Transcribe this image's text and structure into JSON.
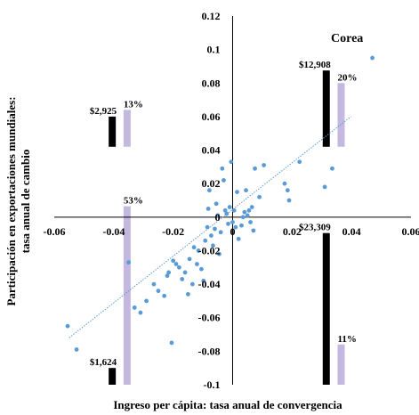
{
  "chart_data": {
    "type": "scatter",
    "title": "",
    "xlabel": "Ingreso per cápita: tasa anual de convergencia",
    "ylabel_line1": "Participación en exportaciones mundiales:",
    "ylabel_line2": "tasa anual de cambio",
    "xlim": [
      -0.06,
      0.06
    ],
    "ylim": [
      -0.1,
      0.12
    ],
    "x_ticks": [
      {
        "value": -0.06,
        "label": "-0.06"
      },
      {
        "value": -0.04,
        "label": "-0.04"
      },
      {
        "value": -0.02,
        "label": "-0.02"
      },
      {
        "value": 0,
        "label": "0"
      },
      {
        "value": 0.02,
        "label": "0.02"
      },
      {
        "value": 0.04,
        "label": "0.04"
      },
      {
        "value": 0.06,
        "label": "0.06"
      }
    ],
    "y_ticks": [
      {
        "value": 0.12,
        "label": "0.12"
      },
      {
        "value": 0.1,
        "label": "0.1"
      },
      {
        "value": 0.08,
        "label": "0.08"
      },
      {
        "value": 0.06,
        "label": "0.06"
      },
      {
        "value": 0.04,
        "label": "0.04"
      },
      {
        "value": 0.02,
        "label": "0.02"
      },
      {
        "value": 0,
        "label": "0"
      },
      {
        "value": -0.02,
        "label": "-0.02"
      },
      {
        "value": -0.04,
        "label": "-0.04"
      },
      {
        "value": -0.06,
        "label": "-0.06"
      },
      {
        "value": -0.08,
        "label": "-0.08"
      },
      {
        "value": -0.1,
        "label": "-0.1"
      }
    ],
    "grid": false,
    "point_color": "#5b9bd5",
    "trend_color": "#5b9bd5",
    "bar_dark_color": "#000000",
    "bar_light_color": "#c4b8e0",
    "points": [
      [
        -0.0555,
        -0.065
      ],
      [
        -0.0525,
        -0.079
      ],
      [
        -0.035,
        -0.027
      ],
      [
        -0.033,
        -0.054
      ],
      [
        -0.031,
        -0.057
      ],
      [
        -0.029,
        -0.05
      ],
      [
        -0.0265,
        -0.04
      ],
      [
        -0.025,
        -0.044
      ],
      [
        -0.023,
        -0.047
      ],
      [
        -0.022,
        -0.035
      ],
      [
        -0.0215,
        -0.033
      ],
      [
        -0.0205,
        -0.075
      ],
      [
        -0.02,
        -0.026
      ],
      [
        -0.019,
        -0.028
      ],
      [
        -0.018,
        -0.03
      ],
      [
        -0.017,
        -0.037
      ],
      [
        -0.016,
        -0.033
      ],
      [
        -0.015,
        -0.046
      ],
      [
        -0.0145,
        -0.025
      ],
      [
        -0.0135,
        -0.04
      ],
      [
        -0.013,
        -0.018
      ],
      [
        -0.012,
        -0.028
      ],
      [
        -0.0115,
        -0.02
      ],
      [
        -0.0105,
        -0.031
      ],
      [
        -0.0098,
        -0.038
      ],
      [
        -0.0092,
        -0.014
      ],
      [
        -0.0085,
        -0.006
      ],
      [
        -0.0082,
        0.005
      ],
      [
        -0.0078,
        0.016
      ],
      [
        -0.0072,
        -0.011
      ],
      [
        -0.0066,
        -0.017
      ],
      [
        -0.006,
        -0.007
      ],
      [
        -0.0055,
        0.008
      ],
      [
        -0.005,
        0.001
      ],
      [
        -0.0045,
        -0.022
      ],
      [
        -0.004,
        -0.009
      ],
      [
        -0.0035,
        0.029
      ],
      [
        -0.003,
        0.022
      ],
      [
        -0.0025,
        0.004
      ],
      [
        -0.002,
        0.002
      ],
      [
        -0.0015,
        -0.004
      ],
      [
        -0.001,
        0.006
      ],
      [
        -0.0005,
        0.033
      ],
      [
        0.0,
        -0.003
      ],
      [
        0.0005,
        0.004
      ],
      [
        0.001,
        -0.006
      ],
      [
        0.0015,
        0.015
      ],
      [
        0.002,
        -0.013
      ],
      [
        0.003,
        -0.005
      ],
      [
        0.0035,
        0.0
      ],
      [
        0.004,
        0.003
      ],
      [
        0.0045,
        0.016
      ],
      [
        0.005,
        0.001
      ],
      [
        0.0055,
        0.004
      ],
      [
        0.006,
        -0.003
      ],
      [
        0.0065,
        0.006
      ],
      [
        0.007,
        -0.008
      ],
      [
        0.0075,
        0.029
      ],
      [
        0.009,
        0.012
      ],
      [
        0.0105,
        0.031
      ],
      [
        0.0175,
        0.02
      ],
      [
        0.0185,
        0.016
      ],
      [
        0.019,
        0.01
      ],
      [
        0.0225,
        0.033
      ],
      [
        0.031,
        0.018
      ],
      [
        0.0335,
        0.029
      ],
      [
        0.047,
        0.095
      ]
    ],
    "trendline": {
      "from": [
        -0.055,
        -0.072
      ],
      "to": [
        0.0398,
        0.06
      ]
    },
    "bars": [
      {
        "kind": "dark",
        "x": -0.0405,
        "from": 0.042,
        "to": 0.06,
        "label": "$2,925"
      },
      {
        "kind": "light",
        "x": -0.0355,
        "from": 0.042,
        "to": 0.064,
        "label": "13%"
      },
      {
        "kind": "light",
        "x": -0.0355,
        "from": -0.1,
        "to": 0.0065,
        "label": "53%"
      },
      {
        "kind": "dark",
        "x": -0.0405,
        "from": -0.1,
        "to": -0.09,
        "label": "$1,624"
      },
      {
        "kind": "dark",
        "x": 0.0315,
        "from": 0.042,
        "to": 0.0875,
        "label": "$12,908"
      },
      {
        "kind": "light",
        "x": 0.0365,
        "from": 0.042,
        "to": 0.08,
        "label": "20%"
      },
      {
        "kind": "dark",
        "x": 0.0315,
        "from": -0.1,
        "to": -0.0095,
        "label": "$23,309"
      },
      {
        "kind": "light",
        "x": 0.0365,
        "from": -0.1,
        "to": -0.076,
        "label": "11%"
      }
    ],
    "callout": "Corea"
  }
}
